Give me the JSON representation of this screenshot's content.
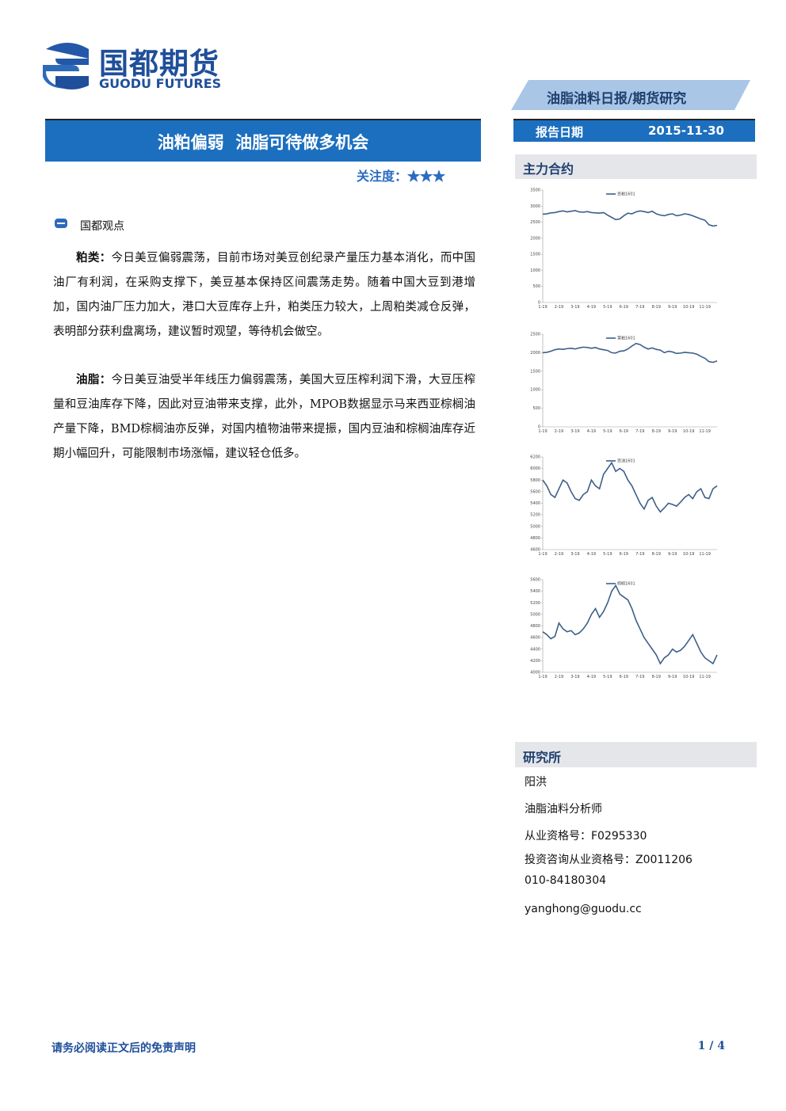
{
  "header": {
    "logo_cn": "国都期货",
    "logo_en": "GUODU FUTURES",
    "banner": "油脂油料日报/期货研究",
    "date_label": "报告日期",
    "date": "2015-11-30"
  },
  "title": "油粕偏弱  油脂可待做多机会",
  "attention": "关注度：★★★",
  "section": "国都观点",
  "paragraphs": [
    {
      "label": "粕类：",
      "text": "今日美豆偏弱震荡，目前市场对美豆创纪录产量压力基本消化，而中国油厂有利润，在采购支撑下，美豆基本保持区间震荡走势。随着中国大豆到港增加，国内油厂压力加大，港口大豆库存上升，粕类压力较大，上周粕类减仓反弹，表明部分获利盘离场，建议暂时观望，等待机会做空。"
    },
    {
      "label": "油脂：",
      "text": "今日美豆油受半年线压力偏弱震荡，美国大豆压榨利润下滑，大豆压榨量和豆油库存下降，因此对豆油带来支撑，此外，MPOB数据显示马来西亚棕榈油产量下降，BMD棕榈油亦反弹，对国内植物油带来提振，国内豆油和棕榈油库存近期小幅回升，可能限制市场涨幅，建议轻仓低多。"
    }
  ],
  "sidebar_title": "主力合约",
  "chart_data": [
    {
      "type": "line",
      "categories": [
        "1-19",
        null,
        null,
        null,
        "2-19",
        null,
        null,
        null,
        "3-19",
        null,
        null,
        null,
        "4-19",
        null,
        null,
        null,
        "5-19",
        null,
        null,
        null,
        "6-19",
        null,
        null,
        null,
        "7-19",
        null,
        null,
        null,
        "8-19",
        null,
        null,
        null,
        "9-19",
        null,
        null,
        null,
        "10-19",
        null,
        null,
        null,
        "11-19",
        null,
        null,
        null
      ],
      "series": [
        {
          "name": "豆粕1601",
          "color": "#3b5f8a",
          "values": [
            2750,
            2760,
            2790,
            2800,
            2830,
            2850,
            2820,
            2840,
            2860,
            2820,
            2810,
            2830,
            2800,
            2790,
            2780,
            2800,
            2720,
            2650,
            2580,
            2600,
            2700,
            2780,
            2760,
            2820,
            2850,
            2830,
            2800,
            2840,
            2760,
            2720,
            2700,
            2740,
            2760,
            2700,
            2720,
            2760,
            2740,
            2700,
            2650,
            2600,
            2560,
            2420,
            2380,
            2400
          ]
        }
      ],
      "ylim": [
        0,
        3500
      ],
      "yticks": [
        0,
        500,
        1000,
        1500,
        2000,
        2500,
        3000,
        3500
      ]
    },
    {
      "type": "line",
      "categories": [
        "1-19",
        null,
        null,
        null,
        "2-19",
        null,
        null,
        null,
        "3-19",
        null,
        null,
        null,
        "4-19",
        null,
        null,
        null,
        "5-19",
        null,
        null,
        null,
        "6-19",
        null,
        null,
        null,
        "7-19",
        null,
        null,
        null,
        "8-19",
        null,
        null,
        null,
        "9-19",
        null,
        null,
        null,
        "10-19",
        null,
        null,
        null,
        "11-19",
        null,
        null,
        null
      ],
      "series": [
        {
          "name": "菜粕1601",
          "color": "#3b5f8a",
          "values": [
            2000,
            2010,
            2040,
            2080,
            2100,
            2090,
            2110,
            2120,
            2100,
            2130,
            2150,
            2140,
            2120,
            2140,
            2100,
            2080,
            2060,
            2000,
            1990,
            2040,
            2050,
            2100,
            2180,
            2250,
            2220,
            2150,
            2100,
            2130,
            2090,
            2070,
            2000,
            2040,
            2020,
            1980,
            1990,
            2010,
            2000,
            1990,
            1960,
            1900,
            1850,
            1760,
            1740,
            1780
          ]
        }
      ],
      "ylim": [
        0,
        2500
      ],
      "yticks": [
        0,
        500,
        1000,
        1500,
        2000,
        2500
      ]
    },
    {
      "type": "line",
      "categories": [
        "1-19",
        null,
        null,
        null,
        "2-19",
        null,
        null,
        null,
        "3-19",
        null,
        null,
        null,
        "4-19",
        null,
        null,
        null,
        "5-19",
        null,
        null,
        null,
        "6-19",
        null,
        null,
        null,
        "7-19",
        null,
        null,
        null,
        "8-19",
        null,
        null,
        null,
        "9-19",
        null,
        null,
        null,
        "10-19",
        null,
        null,
        null,
        "11-19",
        null,
        null,
        null
      ],
      "series": [
        {
          "name": "豆油1601",
          "color": "#3b5f8a",
          "values": [
            5800,
            5700,
            5550,
            5500,
            5650,
            5800,
            5750,
            5600,
            5480,
            5450,
            5550,
            5600,
            5800,
            5700,
            5650,
            5900,
            6000,
            6100,
            5950,
            6000,
            5950,
            5800,
            5700,
            5550,
            5400,
            5300,
            5450,
            5500,
            5350,
            5250,
            5320,
            5400,
            5380,
            5350,
            5420,
            5500,
            5550,
            5480,
            5600,
            5650,
            5500,
            5480,
            5650,
            5700
          ]
        }
      ],
      "ylim": [
        4600,
        6200
      ],
      "yticks": [
        4600,
        4800,
        5000,
        5200,
        5400,
        5600,
        5800,
        6000,
        6200
      ]
    },
    {
      "type": "line",
      "categories": [
        "1-19",
        null,
        null,
        null,
        "2-19",
        null,
        null,
        null,
        "3-19",
        null,
        null,
        null,
        "4-19",
        null,
        null,
        null,
        "5-19",
        null,
        null,
        null,
        "6-19",
        null,
        null,
        null,
        "7-19",
        null,
        null,
        null,
        "8-19",
        null,
        null,
        null,
        "9-19",
        null,
        null,
        null,
        "10-19",
        null,
        null,
        null,
        "11-19",
        null,
        null,
        null
      ],
      "series": [
        {
          "name": "棕榈1601",
          "color": "#3b5f8a",
          "values": [
            4700,
            4650,
            4580,
            4620,
            4850,
            4750,
            4700,
            4720,
            4650,
            4680,
            4750,
            4850,
            5000,
            5100,
            4950,
            5050,
            5200,
            5400,
            5500,
            5350,
            5300,
            5250,
            5100,
            4900,
            4750,
            4600,
            4500,
            4400,
            4300,
            4150,
            4250,
            4300,
            4400,
            4350,
            4380,
            4450,
            4550,
            4650,
            4500,
            4350,
            4250,
            4200,
            4150,
            4300
          ]
        }
      ],
      "ylim": [
        4000,
        5600
      ],
      "yticks": [
        4000,
        4200,
        4400,
        4600,
        4800,
        5000,
        5200,
        5400,
        5600
      ]
    }
  ],
  "research": {
    "title": "研究所",
    "lines": [
      "阳洪",
      "油脂油料分析师",
      "从业资格号：F0295330",
      "投资咨询从业资格号：Z0011206",
      "010-84180304",
      "yanghong@guodu.cc"
    ]
  },
  "footer": {
    "disclaimer": "请务必阅读正文后的免责声明",
    "page": "1 / 4"
  }
}
